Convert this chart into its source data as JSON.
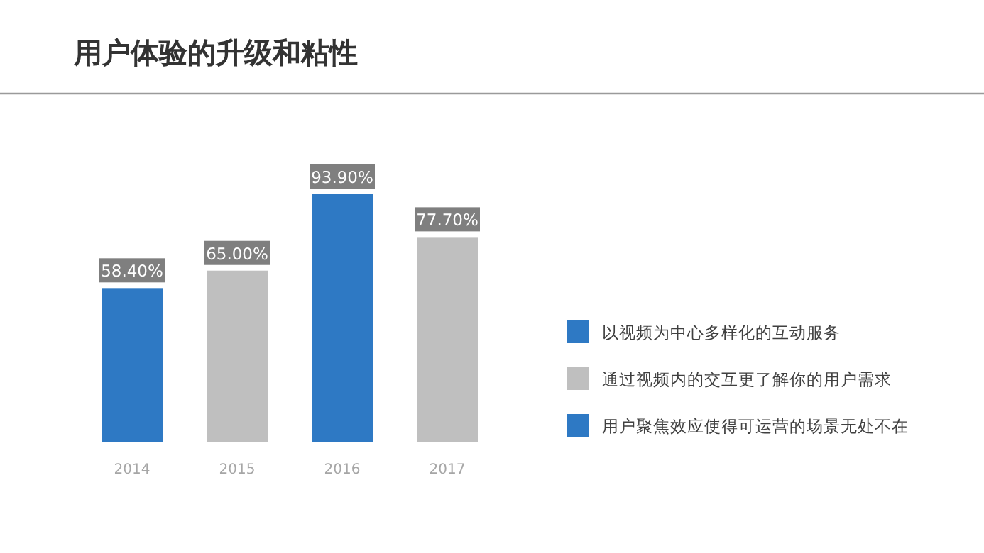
{
  "chart_data": {
    "type": "bar",
    "title": "用户体验的升级和粘性",
    "categories": [
      "2014",
      "2015",
      "2016",
      "2017"
    ],
    "stacked": true,
    "legend": "right",
    "series": [
      {
        "name": "以视频为中心多样化的互动服务",
        "color": "#2e79c4",
        "values": [
          58.4,
          null,
          null,
          null
        ],
        "value_labels": [
          "58.40%",
          null,
          null,
          null
        ]
      },
      {
        "name": "通过视频内的交互更了解你的用户需求",
        "color": "#bfbfbf",
        "values": [
          null,
          65.0,
          null,
          77.7
        ],
        "value_labels": [
          null,
          "65.00%",
          null,
          "77.70%"
        ]
      },
      {
        "name": "用户聚焦效应使得可运营的场景无处不在",
        "color": "#2e79c4",
        "values": [
          null,
          null,
          93.9,
          null
        ],
        "value_labels": [
          null,
          null,
          "93.90%",
          null
        ]
      }
    ]
  }
}
